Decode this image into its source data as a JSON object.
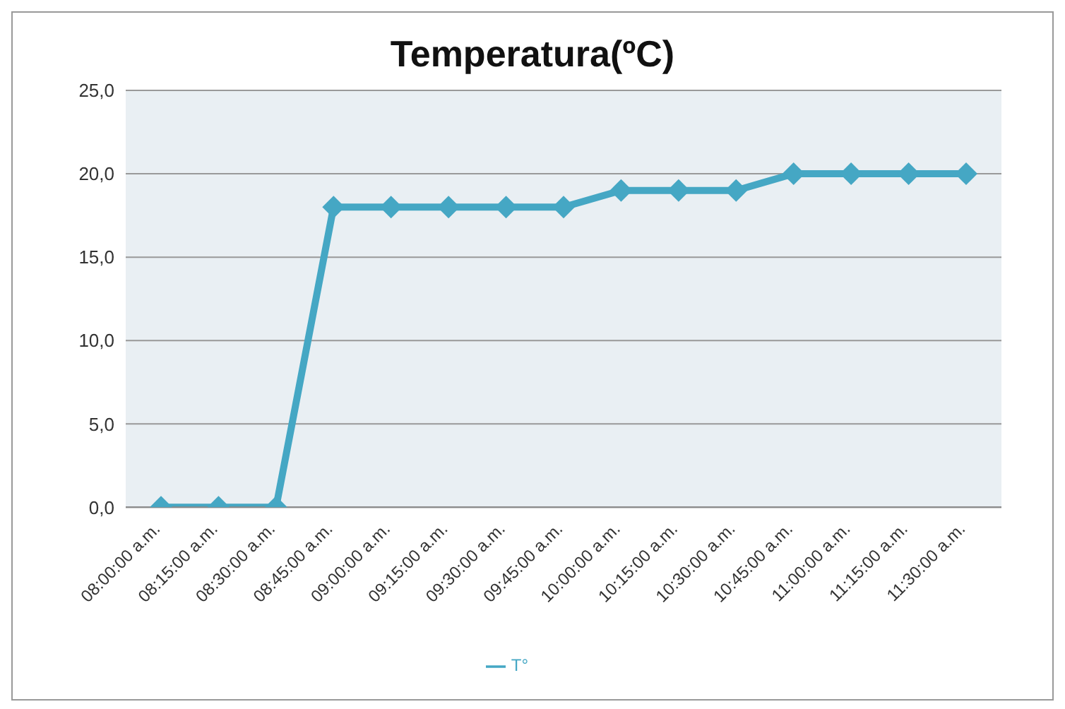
{
  "chart_data": {
    "type": "line",
    "title": "Temperatura(ºC)",
    "categories": [
      "08:00:00 a.m.",
      "08:15:00 a.m.",
      "08:30:00 a.m.",
      "08:45:00 a.m.",
      "09:00:00 a.m.",
      "09:15:00 a.m.",
      "09:30:00 a.m.",
      "09:45:00 a.m.",
      "10:00:00 a.m.",
      "10:15:00 a.m.",
      "10:30:00 a.m.",
      "10:45:00 a.m.",
      "11:00:00 a.m.",
      "11:15:00 a.m.",
      "11:30:00 a.m."
    ],
    "series": [
      {
        "name": "T°",
        "color": "#45a7c4",
        "values": [
          0,
          0,
          0,
          18,
          18,
          18,
          18,
          18,
          19,
          19,
          19,
          20,
          20,
          20,
          20
        ]
      }
    ],
    "ylim": [
      0,
      25
    ],
    "yticks": [
      {
        "value": 0,
        "label": "0,0"
      },
      {
        "value": 5,
        "label": "5,0"
      },
      {
        "value": 10,
        "label": "10,0"
      },
      {
        "value": 15,
        "label": "15,0"
      },
      {
        "value": 20,
        "label": "20,0"
      },
      {
        "value": 25,
        "label": "25,0"
      }
    ],
    "grid": "y",
    "legend": "bottom",
    "marker": "diamond",
    "line_style": "solid"
  }
}
